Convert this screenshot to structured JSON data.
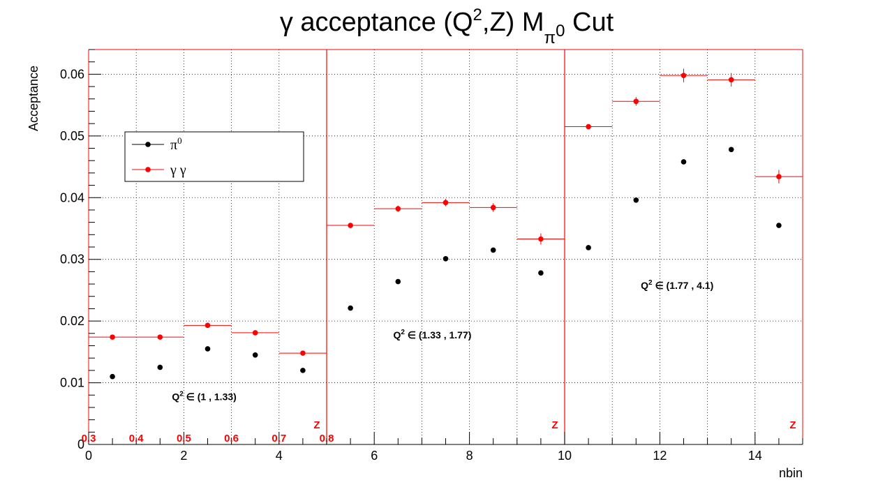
{
  "chart_data": {
    "type": "scatter",
    "title": {
      "main": "γ acceptance (Q",
      "sup": "2",
      "after": ",Z)  M",
      "sub": "π",
      "sub_sup": "0",
      "tail": " Cut"
    },
    "xlabel": "nbin",
    "ylabel": "Acceptance",
    "xlim": [
      0,
      15
    ],
    "ylim": [
      0,
      0.064
    ],
    "x_ticks": [
      0,
      2,
      4,
      6,
      8,
      10,
      12,
      14
    ],
    "x_tick_labels": [
      "0",
      "2",
      "4",
      "6",
      "8",
      "10",
      "12",
      "14"
    ],
    "y_ticks": [
      0,
      0.01,
      0.02,
      0.03,
      0.04,
      0.05,
      0.06
    ],
    "y_tick_labels": [
      "0",
      "0.01",
      "0.02",
      "0.03",
      "0.04",
      "0.05",
      "0.06"
    ],
    "grid": true,
    "legend_position": "top-left",
    "series": [
      {
        "name": "π",
        "name_sup": "0",
        "color": "#000000",
        "x": [
          0.5,
          1.5,
          2.5,
          3.5,
          4.5,
          5.5,
          6.5,
          7.5,
          8.5,
          9.5,
          10.5,
          11.5,
          12.5,
          13.5,
          14.5
        ],
        "values": [
          0.011,
          0.0125,
          0.0155,
          0.0145,
          0.012,
          0.0221,
          0.0264,
          0.0301,
          0.0315,
          0.0278,
          0.0319,
          0.0396,
          0.0458,
          0.0478,
          0.0355
        ]
      },
      {
        "name": "γ γ",
        "color": "#ff0000",
        "x": [
          0.5,
          1.5,
          2.5,
          3.5,
          4.5,
          5.5,
          6.5,
          7.5,
          8.5,
          9.5,
          10.5,
          11.5,
          12.5,
          13.5,
          14.5
        ],
        "values": [
          0.0174,
          0.0174,
          0.0193,
          0.0181,
          0.0148,
          0.0355,
          0.0382,
          0.0392,
          0.0384,
          0.0333,
          0.0515,
          0.0556,
          0.0598,
          0.0591,
          0.0434
        ],
        "errors": [
          0.0003,
          0.0003,
          0.0004,
          0.0004,
          0.0004,
          0.0004,
          0.0005,
          0.0006,
          0.0007,
          0.0009,
          0.0004,
          0.0007,
          0.0011,
          0.0011,
          0.0011
        ]
      }
    ],
    "region_separators_x": [
      5,
      10
    ],
    "annotations": [
      {
        "prefix": "Q",
        "sup": "2",
        "text": " ∈ (1 , 1.33)",
        "x": 1.75,
        "y": 0.0072
      },
      {
        "prefix": "Q",
        "sup": "2",
        "text": " ∈ (1.33 , 1.77)",
        "x": 6.4,
        "y": 0.0172
      },
      {
        "prefix": "Q",
        "sup": "2",
        "text": " ∈ (1.77 , 4.1)",
        "x": 11.6,
        "y": 0.0252
      }
    ],
    "z_labels": [
      "0.3",
      "0.4",
      "0.5",
      "0.6",
      "0.7",
      "0.8"
    ],
    "z_marker": "Z"
  }
}
